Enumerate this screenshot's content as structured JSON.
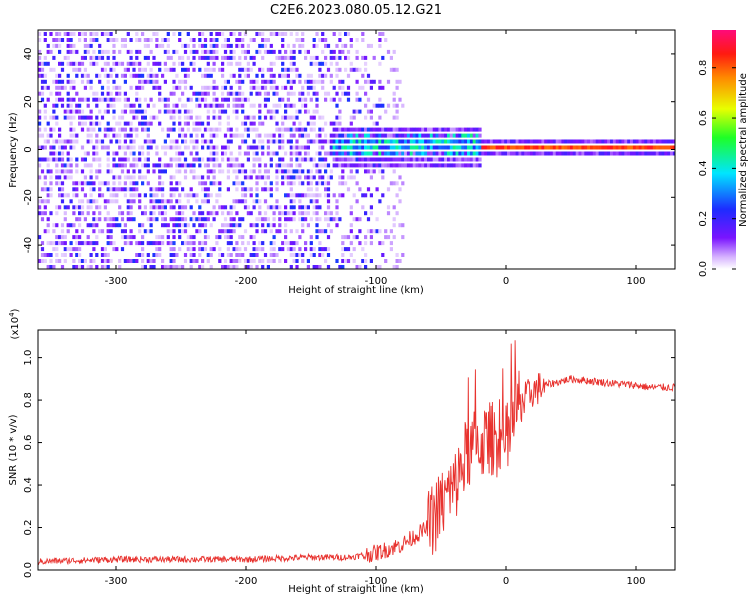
{
  "title": "C2E6.2023.080.05.12.G21",
  "colors": {
    "snr_line": "#e8322e",
    "spectrogram_base": "#6a00ff",
    "background": "#ffffff"
  },
  "chart_data": [
    {
      "type": "heatmap",
      "xlabel": "Height of straight line (km)",
      "ylabel": "Frequency (Hz)",
      "xlim": [
        -360,
        130
      ],
      "ylim": [
        -50,
        50
      ],
      "xticks": [
        -300,
        -200,
        -100,
        0,
        100
      ],
      "yticks": [
        -40,
        -20,
        0,
        20,
        40
      ],
      "colorbar": {
        "label": "Normalized spectral amplitude",
        "range": [
          0.0,
          0.95
        ],
        "ticks": [
          0.0,
          0.2,
          0.4,
          0.6,
          0.8
        ],
        "colormap": "rainbow (white-purple-blue-cyan-green-yellow-red-magenta)"
      },
      "features": [
        {
          "name": "diffuse noise",
          "x_range": [
            -360,
            -95
          ],
          "freq_range": [
            -50,
            50
          ],
          "amplitude": 0.1
        },
        {
          "name": "carrier band",
          "x_range": [
            -130,
            -20
          ],
          "freq_range": [
            -8,
            8
          ],
          "amplitude": 0.35
        },
        {
          "name": "carrier line",
          "x_range": [
            -20,
            130
          ],
          "freq_range": [
            -2,
            3
          ],
          "amplitude": 0.9
        }
      ]
    },
    {
      "type": "line",
      "xlabel": "Height of straight line (km)",
      "ylabel": "SNR (10 * v/v)",
      "y_scale_label": "(x10",
      "y_scale_exp": "4",
      "xlim": [
        -360,
        130
      ],
      "ylim": [
        0,
        1.13
      ],
      "xticks": [
        -300,
        -200,
        -100,
        0,
        100
      ],
      "yticks": [
        0.0,
        0.2,
        0.4,
        0.6,
        0.8,
        1.0
      ],
      "series": [
        {
          "x": [
            -360,
            -300,
            -200,
            -150,
            -120,
            -100,
            -80,
            -60,
            -50,
            -40,
            -30,
            -20,
            -10,
            0,
            10,
            20,
            30,
            50,
            80,
            100,
            110,
            130
          ],
          "y": [
            0.04,
            0.05,
            0.05,
            0.06,
            0.06,
            0.08,
            0.12,
            0.2,
            0.3,
            0.38,
            0.55,
            0.6,
            0.62,
            0.6,
            0.78,
            0.84,
            0.87,
            0.9,
            0.88,
            0.87,
            0.86,
            0.86
          ]
        }
      ]
    }
  ]
}
